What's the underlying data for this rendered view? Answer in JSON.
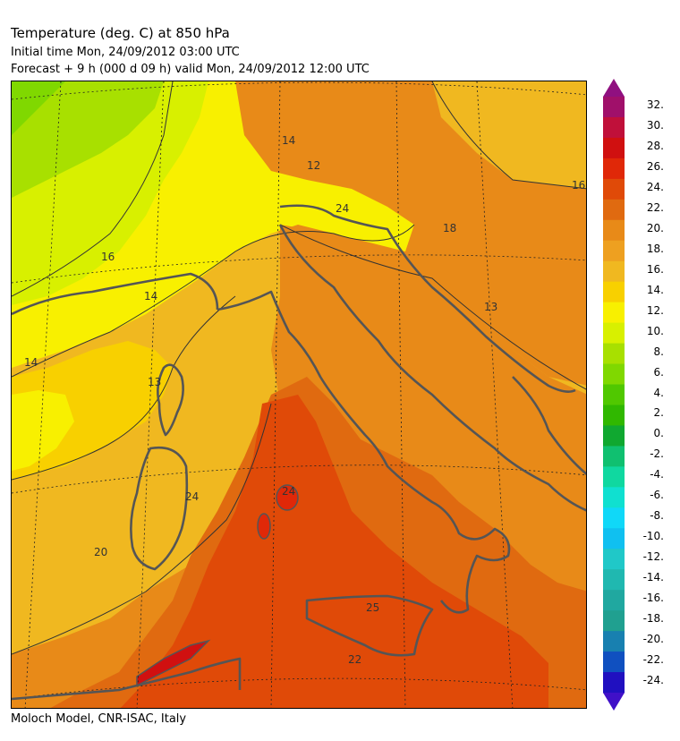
{
  "header": {
    "title": "Temperature (deg. C) at 850 hPa",
    "initial": "Initial time  Mon, 24/09/2012  03:00 UTC",
    "forecast": "Forecast  +    9 h  (000 d 09 h)  valid Mon, 24/09/2012 12:00 UTC"
  },
  "footer": "Moloch Model, CNR-ISAC, Italy",
  "map": {
    "contour_labels": [
      {
        "id": "l-north-14",
        "text": "14"
      },
      {
        "id": "l-north-12",
        "text": "12"
      },
      {
        "id": "l-alps-24",
        "text": "24"
      },
      {
        "id": "l-west-16",
        "text": "16"
      },
      {
        "id": "l-west-14a",
        "text": "14"
      },
      {
        "id": "l-west-14b",
        "text": "14"
      },
      {
        "id": "l-east-16",
        "text": "16"
      },
      {
        "id": "l-east-18",
        "text": "18"
      },
      {
        "id": "l-east-13",
        "text": "13"
      },
      {
        "id": "l-corse-13",
        "text": "13"
      },
      {
        "id": "l-tyr-24",
        "text": "24"
      },
      {
        "id": "l-sard-24",
        "text": "24"
      },
      {
        "id": "l-sw-20",
        "text": "20"
      },
      {
        "id": "l-sic-25",
        "text": "25"
      },
      {
        "id": "l-south-22",
        "text": "22"
      }
    ]
  },
  "colorbar": {
    "labels": [
      "32.",
      "30.",
      "28.",
      "26.",
      "24.",
      "22.",
      "20.",
      "18.",
      "16.",
      "14.",
      "12.",
      "10.",
      "8.",
      "6.",
      "4.",
      "2.",
      "0.",
      "-2.",
      "-4.",
      "-6.",
      "-8.",
      "-10.",
      "-12.",
      "-14.",
      "-16.",
      "-18.",
      "-20.",
      "-22.",
      "-24."
    ],
    "colors": [
      "#a0106a",
      "#c0103a",
      "#d01010",
      "#e02808",
      "#e04a08",
      "#e06a10",
      "#e88a18",
      "#eea020",
      "#f0b820",
      "#f8d000",
      "#f8f000",
      "#d8f000",
      "#a8e000",
      "#80d800",
      "#50c800",
      "#30b800",
      "#10a830",
      "#10c070",
      "#10d8a0",
      "#10e0d0",
      "#10d8f8",
      "#10c0f0",
      "#20c8c8",
      "#20b8b0",
      "#20a8a0",
      "#20a090",
      "#1880b0",
      "#1050c0",
      "#2010c0"
    ]
  }
}
